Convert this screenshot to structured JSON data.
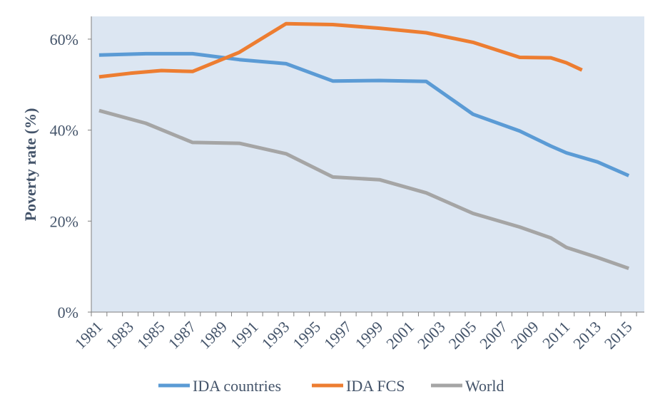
{
  "chart_data": {
    "type": "line",
    "title": "",
    "xlabel": "",
    "ylabel": "Poverty rate (%)",
    "xlim": [
      1981,
      2015
    ],
    "ylim": [
      0,
      0.65
    ],
    "yticks": [
      {
        "value": 0,
        "label": "0%"
      },
      {
        "value": 0.2,
        "label": "20%"
      },
      {
        "value": 0.4,
        "label": "40%"
      },
      {
        "value": 0.6,
        "label": "60%"
      }
    ],
    "xticks": [
      1981,
      1983,
      1985,
      1987,
      1989,
      1991,
      1993,
      1995,
      1997,
      1999,
      2001,
      2003,
      2005,
      2007,
      2009,
      2011,
      2013,
      2015
    ],
    "grid": false,
    "plot_background": "#DCE6F2",
    "legend_position": "bottom",
    "series": [
      {
        "name": "IDA countries",
        "color": "#5B9BD5",
        "x": [
          1981,
          1984,
          1987,
          1990,
          1993,
          1996,
          1999,
          2002,
          2005,
          2008,
          2010,
          2011,
          2013,
          2015
        ],
        "values": [
          0.565,
          0.568,
          0.568,
          0.555,
          0.546,
          0.508,
          0.509,
          0.507,
          0.435,
          0.398,
          0.365,
          0.35,
          0.33,
          0.3
        ]
      },
      {
        "name": "IDA FCS",
        "color": "#ED7D31",
        "x": [
          1981,
          1983,
          1985,
          1987,
          1990,
          1993,
          1996,
          1999,
          2002,
          2005,
          2008,
          2010,
          2011,
          2012
        ],
        "values": [
          0.517,
          0.525,
          0.531,
          0.529,
          0.571,
          0.634,
          0.632,
          0.624,
          0.614,
          0.593,
          0.56,
          0.559,
          0.548,
          0.532
        ]
      },
      {
        "name": "World",
        "color": "#A5A5A5",
        "x": [
          1981,
          1984,
          1987,
          1990,
          1993,
          1996,
          1999,
          2002,
          2005,
          2008,
          2010,
          2011,
          2013,
          2015
        ],
        "values": [
          0.443,
          0.415,
          0.373,
          0.371,
          0.348,
          0.297,
          0.291,
          0.262,
          0.217,
          0.187,
          0.163,
          0.142,
          0.12,
          0.096
        ]
      }
    ]
  }
}
